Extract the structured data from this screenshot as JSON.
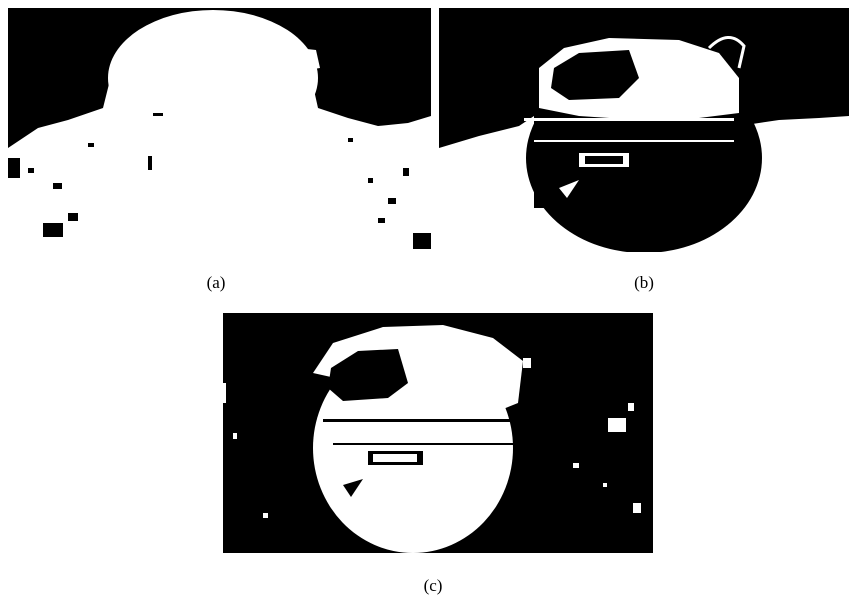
{
  "figure": {
    "panels": [
      {
        "label": "(a)"
      },
      {
        "label": "(b)"
      },
      {
        "label": "(c)"
      }
    ],
    "colors": {
      "foreground": "#ffffff",
      "background": "#000000"
    }
  }
}
